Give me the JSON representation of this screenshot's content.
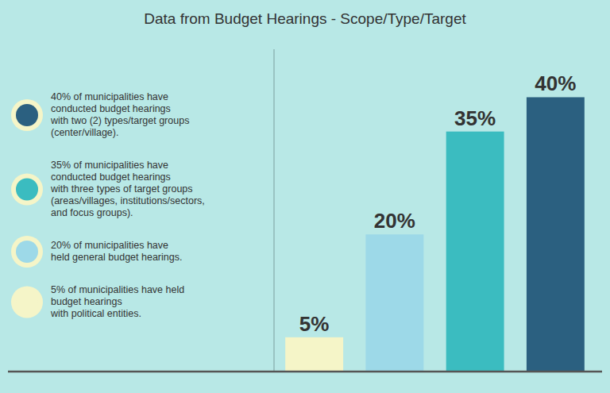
{
  "chart_data": {
    "type": "bar",
    "title": "Data from Budget Hearings - Scope/Type/Target",
    "categories": [
      null,
      null,
      null,
      null
    ],
    "values": [
      5,
      20,
      35,
      40
    ],
    "value_labels": [
      "5%",
      "20%",
      "35%",
      "40%"
    ],
    "colors": [
      "#f5f5c8",
      "#9dd9e8",
      "#3bbcc0",
      "#2b6080"
    ],
    "data_labels": true,
    "ylim": [
      0,
      47
    ],
    "tick_labels": false,
    "grid": false,
    "annotations": [
      {
        "text": "40% of municipalities have\nconducted budget hearings\nwith two (2) types/target groups\n(center/village).",
        "color": "#2b6080"
      },
      {
        "text": "35% of municipalities have\nconducted budget hearings\nwith three types of target groups\n(areas/villages, institutions/sectors,\nand focus groups).",
        "color": "#3bbcc0"
      },
      {
        "text": "20% of municipalities have\nheld general budget hearings.",
        "color": "#9dd9e8"
      },
      {
        "text": "5% of municipalities have held\nbudget hearings\nwith political entities.",
        "color": "#f5f5c8"
      }
    ]
  }
}
